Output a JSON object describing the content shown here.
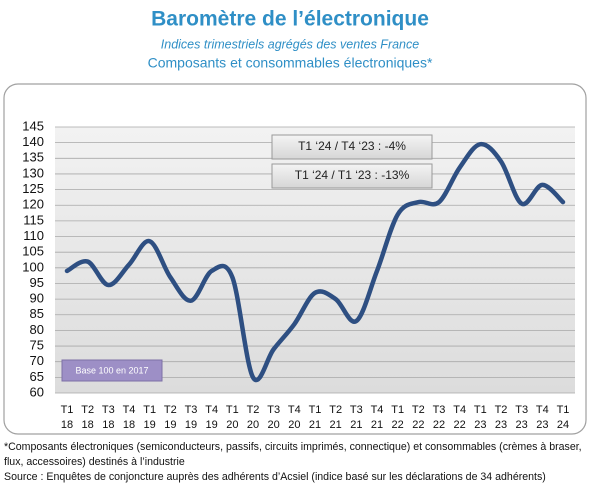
{
  "chart_data": {
    "type": "line",
    "title": "Baromètre de l’électronique",
    "subtitle": "Indices trimestriels agrégés des ventes France",
    "subtitle2": "Composants et consommables électroniques*",
    "categories": [
      [
        "T1",
        "18"
      ],
      [
        "T2",
        "18"
      ],
      [
        "T3",
        "18"
      ],
      [
        "T4",
        "18"
      ],
      [
        "T1",
        "19"
      ],
      [
        "T2",
        "19"
      ],
      [
        "T3",
        "19"
      ],
      [
        "T4",
        "19"
      ],
      [
        "T1",
        "20"
      ],
      [
        "T2",
        "20"
      ],
      [
        "T3",
        "20"
      ],
      [
        "T4",
        "20"
      ],
      [
        "T1",
        "21"
      ],
      [
        "T2",
        "21"
      ],
      [
        "T3",
        "21"
      ],
      [
        "T4",
        "21"
      ],
      [
        "T1",
        "22"
      ],
      [
        "T2",
        "22"
      ],
      [
        "T3",
        "22"
      ],
      [
        "T4",
        "22"
      ],
      [
        "T1",
        "23"
      ],
      [
        "T2",
        "23"
      ],
      [
        "T3",
        "23"
      ],
      [
        "T4",
        "23"
      ],
      [
        "T1",
        "24"
      ]
    ],
    "values": [
      99,
      102,
      94.5,
      101,
      108.5,
      97,
      89.5,
      99,
      97,
      65,
      74,
      82,
      92,
      90,
      83,
      99,
      117,
      121,
      121,
      132,
      139.5,
      134,
      120.5,
      126.5,
      121
    ],
    "color": "#2e4f82",
    "ylim": [
      60,
      145
    ],
    "yticks": [
      60,
      65,
      70,
      75,
      80,
      85,
      90,
      95,
      100,
      105,
      110,
      115,
      120,
      125,
      130,
      135,
      140,
      145
    ],
    "grid": true,
    "annotations": [
      "T1 ‘24 / T4 ‘23  : -4%",
      "T1 ‘24 / T1 ‘23 : -13%",
      "Base 100 en 2017"
    ],
    "footnotes": [
      "*Composants électroniques (semiconducteurs, passifs, circuits imprimés, connectique) et consommables (crèmes à braser, flux, accessoires) destinés à l’industrie",
      "Source : Enquêtes de conjoncture auprès des adhérents d’Acsiel (indice basé sur les déclarations de 34 adhérents)"
    ]
  }
}
